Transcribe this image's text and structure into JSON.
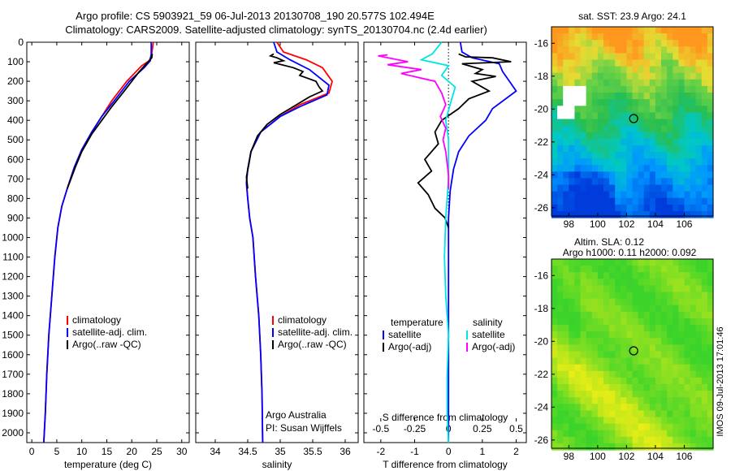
{
  "header": {
    "line1": "Argo profile: CS 5903921_59 06-Jul-2013 20130708_190 20.577S 102.494E",
    "line2": "Climatology: CARS2009. Satellite-adjusted climatology: synTS_20130704.nc (2.4d earlier)"
  },
  "colors": {
    "climatology": "#ff0000",
    "satellite": "#0000ff",
    "argo": "#000000",
    "sat_salinity": "#00e5e5",
    "argo_salinity_adj": "#ff00ff"
  },
  "chart_data": [
    {
      "type": "line",
      "id": "temperature",
      "xlabel": "temperature (deg C)",
      "ylabel": "",
      "xlim": [
        -1,
        31.5
      ],
      "ylim": [
        2050,
        0
      ],
      "xticks": [
        0,
        5,
        10,
        15,
        20,
        25,
        30
      ],
      "yticks": [
        0,
        100,
        200,
        300,
        400,
        500,
        600,
        700,
        800,
        900,
        1000,
        1100,
        1200,
        1300,
        1400,
        1500,
        1600,
        1700,
        1800,
        1900,
        2000
      ],
      "legend": {
        "position": "bottom-right",
        "entries": [
          "climatology",
          "satellite-adj. clim.",
          "Argo(..raw -QC)"
        ]
      },
      "series": [
        {
          "name": "climatology",
          "color": "#ff0000",
          "points": [
            [
              24.3,
              0
            ],
            [
              24.0,
              60
            ],
            [
              23.5,
              95
            ],
            [
              22,
              120
            ],
            [
              19,
              200
            ],
            [
              16,
              300
            ],
            [
              14,
              380
            ],
            [
              12,
              460
            ],
            [
              10,
              550
            ],
            [
              8.5,
              640
            ],
            [
              7.2,
              740
            ],
            [
              6,
              840
            ],
            [
              5.2,
              950
            ],
            [
              4.6,
              1100
            ],
            [
              4.0,
              1300
            ],
            [
              3.4,
              1500
            ],
            [
              3.0,
              1700
            ],
            [
              2.7,
              1900
            ],
            [
              2.4,
              2050
            ]
          ]
        },
        {
          "name": "satellite-adj. clim.",
          "color": "#0000ff",
          "points": [
            [
              23.9,
              0
            ],
            [
              23.9,
              60
            ],
            [
              23.7,
              95
            ],
            [
              22.5,
              130
            ],
            [
              19.5,
              200
            ],
            [
              16.5,
              300
            ],
            [
              14,
              380
            ],
            [
              12,
              460
            ],
            [
              10,
              550
            ],
            [
              8.5,
              640
            ],
            [
              7.2,
              740
            ],
            [
              6,
              840
            ],
            [
              5.2,
              950
            ],
            [
              4.6,
              1100
            ],
            [
              4.0,
              1300
            ],
            [
              3.4,
              1500
            ],
            [
              3.0,
              1700
            ],
            [
              2.7,
              1900
            ],
            [
              2.4,
              2050
            ]
          ]
        },
        {
          "name": "Argo(..raw -QC)",
          "color": "#000000",
          "points": [
            [
              24.1,
              60
            ],
            [
              24.0,
              80
            ],
            [
              23.3,
              100
            ],
            [
              21.5,
              150
            ],
            [
              18.5,
              250
            ],
            [
              16,
              330
            ],
            [
              14,
              400
            ],
            [
              12,
              470
            ],
            [
              10,
              560
            ],
            [
              8.7,
              640
            ],
            [
              7.1,
              750
            ]
          ]
        }
      ]
    },
    {
      "type": "line",
      "id": "salinity",
      "xlabel": "salinity",
      "ylabel": "",
      "xlim": [
        33.7,
        36.2
      ],
      "ylim": [
        2050,
        0
      ],
      "xticks": [
        34,
        34.5,
        35,
        35.5,
        36
      ],
      "legend": {
        "position": "bottom-right",
        "entries": [
          "climatology",
          "satellite-adj. clim.",
          "Argo(..raw -QC)"
        ]
      },
      "annotations": [
        "Argo Australia",
        "PI: Susan Wijffels"
      ],
      "series": [
        {
          "name": "climatology",
          "color": "#ff0000",
          "points": [
            [
              34.95,
              0
            ],
            [
              35.05,
              50
            ],
            [
              35.4,
              90
            ],
            [
              35.65,
              130
            ],
            [
              35.8,
              200
            ],
            [
              35.75,
              260
            ],
            [
              35.3,
              320
            ],
            [
              35.0,
              380
            ],
            [
              34.7,
              460
            ],
            [
              34.55,
              560
            ],
            [
              34.5,
              650
            ],
            [
              34.48,
              720
            ],
            [
              34.5,
              800
            ],
            [
              34.53,
              900
            ],
            [
              34.58,
              1000
            ],
            [
              34.62,
              1200
            ],
            [
              34.67,
              1400
            ],
            [
              34.7,
              1600
            ],
            [
              34.72,
              1800
            ],
            [
              34.73,
              2050
            ]
          ]
        },
        {
          "name": "satellite-adj. clim.",
          "color": "#0000ff",
          "points": [
            [
              34.9,
              0
            ],
            [
              34.95,
              50
            ],
            [
              35.15,
              90
            ],
            [
              35.45,
              140
            ],
            [
              35.75,
              220
            ],
            [
              35.72,
              270
            ],
            [
              35.3,
              330
            ],
            [
              35.0,
              380
            ],
            [
              34.7,
              460
            ],
            [
              34.55,
              560
            ],
            [
              34.5,
              650
            ],
            [
              34.48,
              720
            ],
            [
              34.5,
              800
            ],
            [
              34.53,
              900
            ],
            [
              34.58,
              1000
            ],
            [
              34.62,
              1200
            ],
            [
              34.67,
              1400
            ],
            [
              34.7,
              1600
            ],
            [
              34.72,
              1800
            ],
            [
              34.73,
              2050
            ]
          ]
        },
        {
          "name": "Argo(..raw -QC)",
          "color": "#000000",
          "points": [
            [
              34.9,
              60
            ],
            [
              34.85,
              70
            ],
            [
              34.95,
              80
            ],
            [
              35.05,
              95
            ],
            [
              34.9,
              105
            ],
            [
              35.2,
              130
            ],
            [
              35.35,
              150
            ],
            [
              35.3,
              170
            ],
            [
              35.55,
              200
            ],
            [
              35.6,
              230
            ],
            [
              35.65,
              250
            ],
            [
              35.45,
              280
            ],
            [
              35.25,
              320
            ],
            [
              35.0,
              370
            ],
            [
              34.8,
              420
            ],
            [
              34.65,
              480
            ],
            [
              34.55,
              560
            ],
            [
              34.52,
              620
            ],
            [
              34.48,
              690
            ],
            [
              34.5,
              750
            ]
          ]
        }
      ]
    },
    {
      "type": "line",
      "id": "difference",
      "xlabel": "T difference from climatology",
      "x2label": "S difference from climatology",
      "xlim": [
        -2.5,
        2.3
      ],
      "x2lim": [
        -0.625,
        0.575
      ],
      "ylim": [
        2050,
        0
      ],
      "xticks": [
        -2,
        -1,
        0,
        1,
        2
      ],
      "x2ticks": [
        -0.5,
        -0.25,
        0,
        0.25,
        0.5
      ],
      "legend_left_title": "temperature",
      "legend_right_title": "salinity",
      "legend": {
        "position": "bottom",
        "entries": [
          "satellite",
          "Argo(-adj)",
          "satellite",
          "Argo(-adj)"
        ]
      },
      "series": [
        {
          "name": "satellite",
          "color": "#0000ff",
          "points": [
            [
              0.35,
              0
            ],
            [
              0.4,
              50
            ],
            [
              0.7,
              80
            ],
            [
              1.5,
              110
            ],
            [
              1.6,
              150
            ],
            [
              1.8,
              200
            ],
            [
              2.0,
              250
            ],
            [
              1.3,
              340
            ],
            [
              1.1,
              400
            ],
            [
              0.6,
              480
            ],
            [
              0.3,
              560
            ],
            [
              0.15,
              650
            ],
            [
              0.05,
              760
            ],
            [
              0.0,
              900
            ],
            [
              0.0,
              2050
            ]
          ]
        },
        {
          "name": "Argo(-adj)",
          "color": "#000000",
          "points": [
            [
              0.3,
              60
            ],
            [
              0.5,
              75
            ],
            [
              1.3,
              80
            ],
            [
              1.85,
              100
            ],
            [
              0.4,
              110
            ],
            [
              1.0,
              140
            ],
            [
              0.8,
              160
            ],
            [
              1.4,
              175
            ],
            [
              0.7,
              200
            ],
            [
              1.0,
              230
            ],
            [
              1.2,
              250
            ],
            [
              0.6,
              290
            ],
            [
              0.3,
              340
            ],
            [
              -0.2,
              400
            ],
            [
              -0.4,
              460
            ],
            [
              -0.3,
              520
            ],
            [
              -0.7,
              600
            ],
            [
              -0.5,
              660
            ],
            [
              -0.9,
              720
            ],
            [
              -0.6,
              780
            ],
            [
              -0.4,
              850
            ],
            [
              -0.1,
              900
            ],
            [
              0.0,
              950
            ]
          ]
        },
        {
          "name": "satellite",
          "color": "#00e5e5",
          "points": [
            [
              -0.05,
              0
            ],
            [
              -0.12,
              60
            ],
            [
              -0.2,
              90
            ],
            [
              0.0,
              120
            ],
            [
              -0.05,
              170
            ],
            [
              0.05,
              230
            ],
            [
              0.02,
              300
            ],
            [
              -0.02,
              400
            ],
            [
              0.0,
              500
            ],
            [
              0.0,
              700
            ],
            [
              -0.02,
              900
            ],
            [
              -0.03,
              1100
            ],
            [
              -0.02,
              1300
            ],
            [
              0.0,
              1500
            ],
            [
              -0.01,
              1700
            ],
            [
              -0.01,
              1900
            ],
            [
              0.0,
              2050
            ]
          ]
        },
        {
          "name": "Argo(-adj)",
          "color": "#ff00ff",
          "points": [
            [
              -0.45,
              65
            ],
            [
              -0.52,
              70
            ],
            [
              -0.3,
              100
            ],
            [
              -0.45,
              115
            ],
            [
              -0.2,
              140
            ],
            [
              -0.35,
              160
            ],
            [
              -0.1,
              200
            ],
            [
              -0.05,
              260
            ],
            [
              -0.02,
              320
            ],
            [
              -0.06,
              380
            ],
            [
              -0.02,
              440
            ],
            [
              -0.04,
              500
            ],
            [
              -0.02,
              560
            ],
            [
              -0.01,
              620
            ],
            [
              0.0,
              680
            ],
            [
              0.0,
              750
            ]
          ]
        }
      ]
    },
    {
      "type": "heatmap",
      "id": "sst-map",
      "title": "sat. SST: 23.9  Argo: 24.1",
      "xlim": [
        96.8,
        108
      ],
      "ylim": [
        -26.5,
        -15
      ],
      "xticks": [
        98,
        100,
        102,
        104,
        106
      ],
      "yticks": [
        -16,
        -18,
        -20,
        -22,
        -24,
        -26
      ],
      "marker": {
        "lon": 102.494,
        "lat": -20.577
      }
    },
    {
      "type": "heatmap",
      "id": "sla-map",
      "title": "Altim. SLA: 0.12",
      "subtitle": "Argo h1000: 0.11 h2000: 0.092",
      "xlim": [
        96.8,
        108
      ],
      "ylim": [
        -26.5,
        -15
      ],
      "xticks": [
        98,
        100,
        102,
        104,
        106
      ],
      "yticks": [
        -16,
        -18,
        -20,
        -22,
        -24,
        -26
      ],
      "marker": {
        "lon": 102.494,
        "lat": -20.577
      }
    }
  ],
  "footer_stamp": "IMOS 09-Jul-2013 17:01:46"
}
